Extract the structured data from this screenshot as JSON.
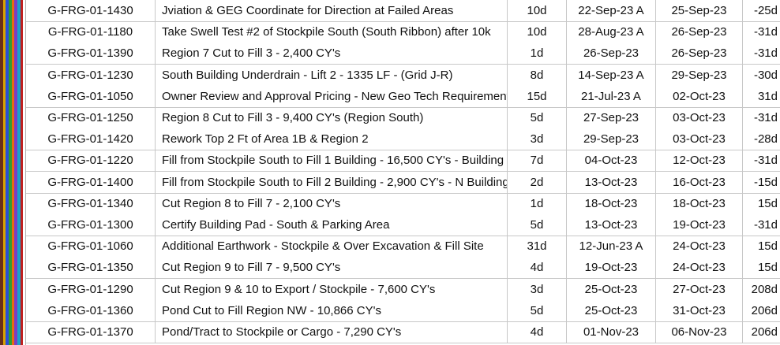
{
  "colors": {
    "stripes": [
      "#6a2f1a",
      "#d9a300",
      "#2b4fd8",
      "#2e9e2e",
      "#e86a10",
      "#7a3fc0",
      "#19a3c9",
      "#c02020",
      "#ffffff"
    ]
  },
  "rows": [
    {
      "id": "G-FRG-01-1430",
      "name": "Jviation & GEG Coordinate for Direction at Failed Areas",
      "dur": "10d",
      "start": "22-Sep-23 A",
      "finish": "25-Sep-23",
      "float": "-25d"
    },
    {
      "id": "G-FRG-01-1180",
      "name": "Take Swell Test #2 of Stockpile South (South Ribbon) after 10k",
      "dur": "10d",
      "start": "28-Aug-23 A",
      "finish": "26-Sep-23",
      "float": "-31d"
    },
    {
      "id": "G-FRG-01-1390",
      "name": "Region 7 Cut to Fill 3 - 2,400 CY's",
      "dur": "1d",
      "start": "26-Sep-23",
      "finish": "26-Sep-23",
      "float": "-31d"
    },
    {
      "id": "G-FRG-01-1230",
      "name": "South Building Underdrain - Lift 2 - 1335 LF - (Grid J-R)",
      "dur": "8d",
      "start": "14-Sep-23 A",
      "finish": "29-Sep-23",
      "float": "-30d"
    },
    {
      "id": "G-FRG-01-1050",
      "name": "Owner Review and Approval Pricing - New Geo Tech Requirements",
      "dur": "15d",
      "start": "21-Jul-23 A",
      "finish": "02-Oct-23",
      "float": "31d"
    },
    {
      "id": "G-FRG-01-1250",
      "name": "Region 8 Cut to Fill 3 - 9,400 CY's (Region South)",
      "dur": "5d",
      "start": "27-Sep-23",
      "finish": "03-Oct-23",
      "float": "-31d"
    },
    {
      "id": "G-FRG-01-1420",
      "name": "Rework Top 2 Ft of Area 1B & Region 2",
      "dur": "3d",
      "start": "29-Sep-23",
      "finish": "03-Oct-23",
      "float": "-28d"
    },
    {
      "id": "G-FRG-01-1220",
      "name": "Fill from Stockpile South to Fill 1 Building - 16,500 CY's - Building",
      "dur": "7d",
      "start": "04-Oct-23",
      "finish": "12-Oct-23",
      "float": "-31d"
    },
    {
      "id": "G-FRG-01-1400",
      "name": "Fill from Stockpile South to Fill 2 Building - 2,900 CY's - N Building",
      "dur": "2d",
      "start": "13-Oct-23",
      "finish": "16-Oct-23",
      "float": "-15d"
    },
    {
      "id": "G-FRG-01-1340",
      "name": "Cut Region 8 to Fill 7 - 2,100 CY's",
      "dur": "1d",
      "start": "18-Oct-23",
      "finish": "18-Oct-23",
      "float": "15d"
    },
    {
      "id": "G-FRG-01-1300",
      "name": "Certify Building Pad - South & Parking Area",
      "dur": "5d",
      "start": "13-Oct-23",
      "finish": "19-Oct-23",
      "float": "-31d"
    },
    {
      "id": "G-FRG-01-1060",
      "name": "Additional Earthwork - Stockpile & Over Excavation & Fill Site",
      "dur": "31d",
      "start": "12-Jun-23 A",
      "finish": "24-Oct-23",
      "float": "15d"
    },
    {
      "id": "G-FRG-01-1350",
      "name": "Cut Region 9 to Fill 7 - 9,500 CY's",
      "dur": "4d",
      "start": "19-Oct-23",
      "finish": "24-Oct-23",
      "float": "15d"
    },
    {
      "id": "G-FRG-01-1290",
      "name": "Cut Region 9 & 10 to Export / Stockpile - 7,600 CY's",
      "dur": "3d",
      "start": "25-Oct-23",
      "finish": "27-Oct-23",
      "float": "208d"
    },
    {
      "id": "G-FRG-01-1360",
      "name": "Pond Cut to Fill Region NW - 10,866 CY's",
      "dur": "5d",
      "start": "25-Oct-23",
      "finish": "31-Oct-23",
      "float": "206d"
    },
    {
      "id": "G-FRG-01-1370",
      "name": "Pond/Tract to Stockpile or Cargo - 7,290 CY's",
      "dur": "4d",
      "start": "01-Nov-23",
      "finish": "06-Nov-23",
      "float": "206d"
    }
  ]
}
